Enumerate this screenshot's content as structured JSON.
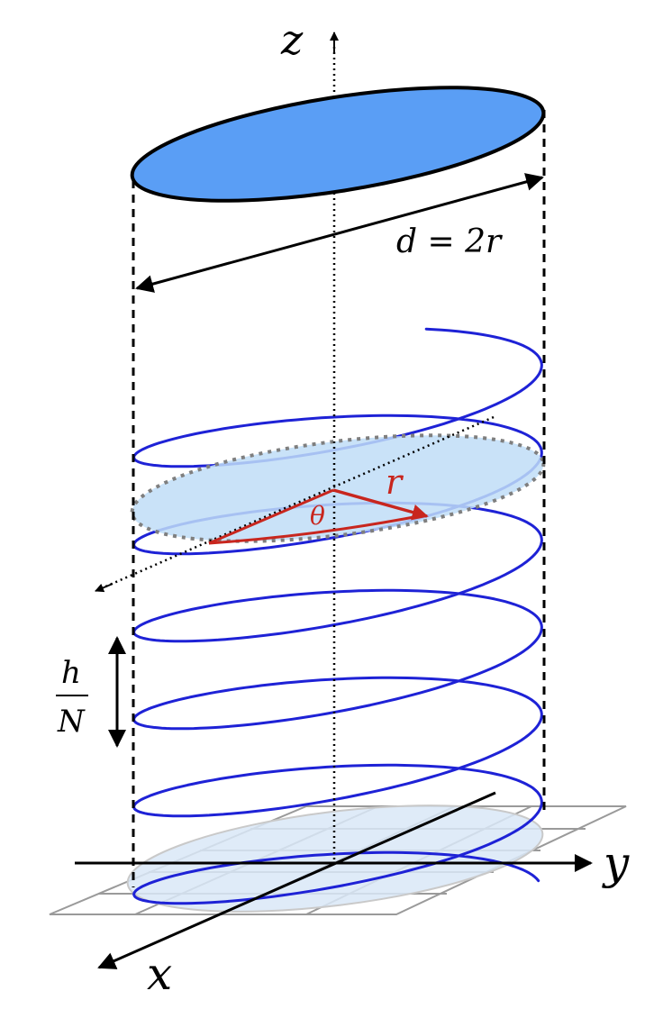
{
  "labels": {
    "z_axis": "z",
    "y_axis": "y",
    "x_axis": "x",
    "diameter": "d = 2r",
    "radius": "r",
    "angle": "θ",
    "pitch_numerator": "h",
    "pitch_denominator": "N"
  },
  "colors": {
    "top_disc_fill": "#5A9EF5",
    "helix": "#1E22D6",
    "cross_section_fill": "#BFDDF7",
    "base_fill": "#D9E8F7",
    "radius_arrow": "#C8261E",
    "dashed_guides": "#000000",
    "grid": "#9A9A9A"
  }
}
